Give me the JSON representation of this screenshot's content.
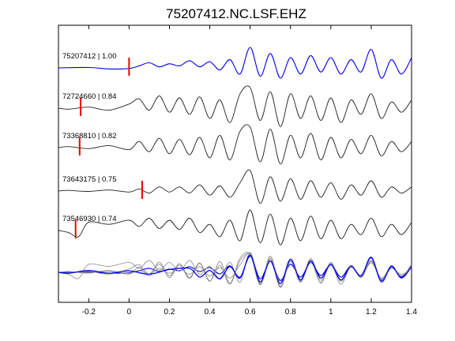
{
  "chart_data": {
    "type": "line",
    "title": "75207412.NC.LSF.EHZ",
    "xlim": [
      -0.35,
      1.4
    ],
    "xticks": [
      -0.2,
      0,
      0.2,
      0.4,
      0.6,
      0.8,
      1,
      1.2,
      1.4
    ],
    "xtick_labels": [
      "-0.2",
      "0",
      "0.2",
      "0.4",
      "0.6",
      "0.8",
      "1",
      "1.2",
      "1.4"
    ],
    "grid": false,
    "colors": {
      "primary": "#0000ee",
      "secondary": "#222222",
      "marker": "#ee0000",
      "stack_gray": "#8a8a8a"
    },
    "series": [
      {
        "label": "75207412 | 1.00",
        "color": "#0000ee",
        "pick_time": 0.0,
        "x": [
          -0.35,
          -0.2,
          -0.1,
          0.0,
          0.05,
          0.1,
          0.15,
          0.2,
          0.25,
          0.3,
          0.35,
          0.4,
          0.45,
          0.5,
          0.55,
          0.6,
          0.65,
          0.7,
          0.75,
          0.8,
          0.85,
          0.9,
          0.95,
          1.0,
          1.05,
          1.1,
          1.15,
          1.2,
          1.25,
          1.3,
          1.35,
          1.4
        ],
        "y": [
          0,
          0.02,
          -0.05,
          -0.03,
          0.1,
          0.25,
          0.05,
          0.2,
          0.1,
          0.35,
          0.05,
          0.3,
          -0.1,
          0.4,
          -0.3,
          1.0,
          -0.4,
          0.7,
          -0.5,
          0.5,
          -0.3,
          0.6,
          -0.2,
          0.5,
          -0.3,
          0.4,
          -0.2,
          0.9,
          -0.5,
          0.4,
          -0.3,
          0.5
        ]
      },
      {
        "label": "72724660 | 0.84",
        "color": "#222222",
        "pick_time": -0.24,
        "x": [
          -0.35,
          -0.3,
          -0.2,
          -0.1,
          0.0,
          0.05,
          0.1,
          0.15,
          0.2,
          0.25,
          0.3,
          0.35,
          0.4,
          0.45,
          0.5,
          0.55,
          0.6,
          0.65,
          0.7,
          0.75,
          0.8,
          0.85,
          0.9,
          0.95,
          1.0,
          1.05,
          1.1,
          1.15,
          1.2,
          1.25,
          1.3,
          1.35,
          1.4
        ],
        "y": [
          0,
          -0.05,
          0.05,
          -0.1,
          0.2,
          0.45,
          -0.1,
          0.6,
          -0.2,
          0.5,
          -0.3,
          0.55,
          -0.5,
          0.4,
          -0.7,
          0.7,
          1.0,
          -0.6,
          0.8,
          -0.9,
          0.7,
          -0.5,
          0.6,
          -0.6,
          0.5,
          -0.7,
          0.4,
          -0.3,
          0.7,
          -0.5,
          0.3,
          -0.2,
          0.4
        ]
      },
      {
        "label": "73368810 | 0.82",
        "color": "#222222",
        "pick_time": -0.245,
        "x": [
          -0.35,
          -0.3,
          -0.2,
          -0.1,
          0.0,
          0.05,
          0.1,
          0.15,
          0.2,
          0.25,
          0.3,
          0.35,
          0.4,
          0.45,
          0.5,
          0.55,
          0.6,
          0.65,
          0.7,
          0.75,
          0.8,
          0.85,
          0.9,
          0.95,
          1.0,
          1.05,
          1.1,
          1.15,
          1.2,
          1.25,
          1.3,
          1.35,
          1.4
        ],
        "y": [
          0,
          0.05,
          -0.05,
          0.1,
          -0.1,
          0.3,
          -0.2,
          0.45,
          -0.3,
          0.4,
          -0.35,
          0.5,
          -0.5,
          0.6,
          -0.6,
          0.8,
          1.0,
          -0.7,
          0.9,
          -0.8,
          0.6,
          -0.5,
          0.7,
          -0.6,
          0.5,
          -0.5,
          0.4,
          -0.3,
          0.6,
          -0.4,
          0.3,
          -0.2,
          0.3
        ]
      },
      {
        "label": "73643175 | 0.75",
        "color": "#222222",
        "pick_time": 0.065,
        "x": [
          -0.35,
          -0.3,
          -0.2,
          -0.1,
          0.0,
          0.05,
          0.1,
          0.15,
          0.2,
          0.25,
          0.3,
          0.35,
          0.4,
          0.45,
          0.5,
          0.55,
          0.6,
          0.65,
          0.7,
          0.75,
          0.8,
          0.85,
          0.9,
          0.95,
          1.0,
          1.05,
          1.1,
          1.15,
          1.2,
          1.25,
          1.3,
          1.35,
          1.4
        ],
        "y": [
          0,
          0.03,
          -0.02,
          0.05,
          -0.05,
          0.1,
          -0.1,
          0.2,
          -0.05,
          0.2,
          -0.1,
          0.3,
          -0.2,
          0.25,
          -0.3,
          0.4,
          1.0,
          -0.6,
          0.7,
          -0.5,
          0.6,
          -0.4,
          0.5,
          -0.3,
          0.4,
          -0.4,
          0.3,
          -0.2,
          0.5,
          -0.3,
          0.2,
          -0.1,
          0.2
        ]
      },
      {
        "label": "73546930 | 0.74",
        "color": "#222222",
        "pick_time": -0.265,
        "x": [
          -0.35,
          -0.3,
          -0.25,
          -0.2,
          -0.1,
          0.0,
          0.05,
          0.1,
          0.15,
          0.2,
          0.25,
          0.3,
          0.35,
          0.4,
          0.45,
          0.5,
          0.55,
          0.6,
          0.65,
          0.7,
          0.75,
          0.8,
          0.85,
          0.9,
          0.95,
          1.0,
          1.05,
          1.1,
          1.15,
          1.2,
          1.25,
          1.3,
          1.35,
          1.4
        ],
        "y": [
          0,
          -0.1,
          -0.3,
          0.4,
          0.3,
          0.5,
          0.2,
          0.6,
          0.1,
          0.5,
          0.05,
          0.6,
          -0.1,
          0.3,
          -0.3,
          0.5,
          -0.5,
          1.0,
          -0.6,
          0.8,
          -0.7,
          0.6,
          -0.5,
          0.7,
          -0.4,
          0.5,
          -0.4,
          0.3,
          -0.2,
          0.6,
          -0.3,
          0.3,
          -0.2,
          0.4
        ]
      }
    ],
    "overlay": {
      "description_visible": false,
      "x": [
        -0.35,
        -0.3,
        -0.2,
        -0.1,
        0.0,
        0.1,
        0.2,
        0.3,
        0.35,
        0.4,
        0.45,
        0.5,
        0.55,
        0.6,
        0.65,
        0.7,
        0.75,
        0.8,
        0.85,
        0.9,
        0.95,
        1.0,
        1.05,
        1.1,
        1.15,
        1.2,
        1.25,
        1.3,
        1.35,
        1.4
      ],
      "y": [
        0,
        -0.05,
        0.1,
        -0.05,
        0.08,
        -0.1,
        0.15,
        0.2,
        -0.25,
        0.1,
        -0.35,
        0.3,
        -0.3,
        0.9,
        -0.5,
        0.6,
        -0.6,
        0.7,
        -0.4,
        0.6,
        -0.3,
        0.4,
        -0.4,
        0.3,
        -0.2,
        0.8,
        -0.5,
        0.3,
        -0.3,
        0.3
      ]
    }
  }
}
